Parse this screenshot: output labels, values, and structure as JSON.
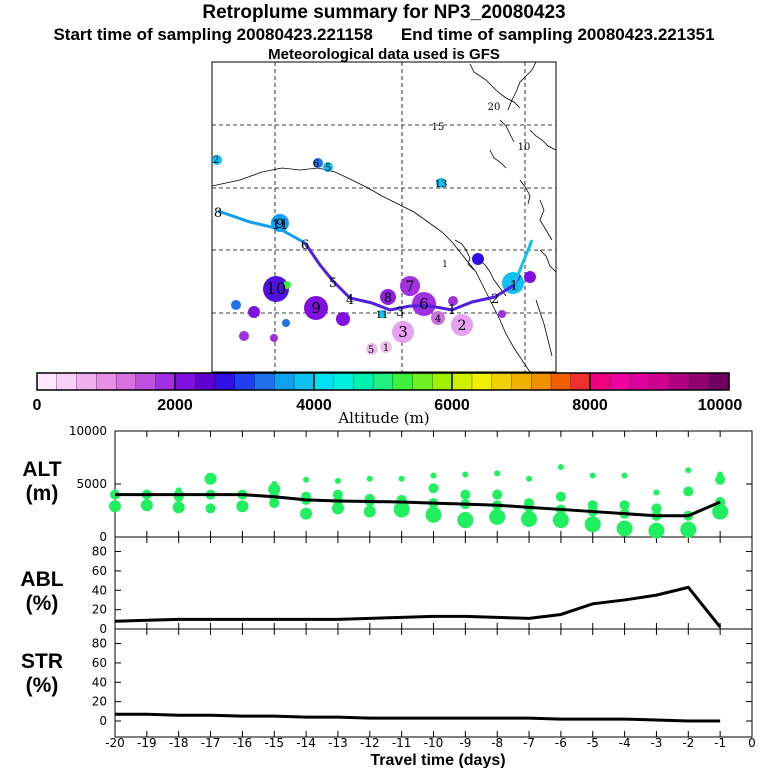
{
  "header": {
    "title": "Retroplume summary for NP3_20080423",
    "start_label": "Start time of sampling 20080423.221158",
    "end_label": "End time of sampling 20080423.221351",
    "met_label": "Meteorological data used is GFS"
  },
  "colorbar": {
    "ticks": [
      "0",
      "2000",
      "4000",
      "6000",
      "8000",
      "10000"
    ],
    "label": "Altitude (m)",
    "colors": [
      "#ffe8ff",
      "#f8d0f8",
      "#f0b0f0",
      "#e890e8",
      "#d870e0",
      "#c050e0",
      "#a030e0",
      "#8010e0",
      "#6000d0",
      "#3010e0",
      "#2040f0",
      "#2070f0",
      "#10a0f0",
      "#10c0f0",
      "#00e0f0",
      "#00f0e0",
      "#00f0b0",
      "#20f080",
      "#40f040",
      "#70f020",
      "#a0f000",
      "#d0f000",
      "#f0f000",
      "#f0d000",
      "#f0b000",
      "#f09000",
      "#f06000",
      "#f03030",
      "#f00080",
      "#f000a0",
      "#e000a0",
      "#d00090",
      "#b00080",
      "#900070",
      "#700060"
    ]
  },
  "map": {
    "trajectory_labels": [
      "8",
      "11",
      "6",
      "5",
      "4",
      "3",
      "1",
      "2",
      "1"
    ],
    "cluster_labels": [
      {
        "t": "10",
        "c": "#5010e0"
      },
      {
        "t": "9",
        "c": "#8010e0"
      },
      {
        "t": "8",
        "c": "#9020e0"
      },
      {
        "t": "7",
        "c": "#a030e0"
      },
      {
        "t": "6",
        "c": "#a030e0"
      },
      {
        "t": "3",
        "c": "#e8a0f0"
      },
      {
        "t": "2",
        "c": "#d070e0"
      },
      {
        "t": "4",
        "c": "#f0c0f0"
      },
      {
        "t": "5",
        "c": "#f0c0f0"
      },
      {
        "t": "1",
        "c": "#10c0f0"
      },
      {
        "t": "11",
        "c": "#10c0f0"
      },
      {
        "t": "9",
        "c": "#2070f0"
      },
      {
        "t": "6",
        "c": "#2070f0"
      },
      {
        "t": "5",
        "c": "#10c0f0"
      },
      {
        "t": "13",
        "c": "#40f040"
      },
      {
        "t": "15",
        "c": "#40f040"
      },
      {
        "t": "20",
        "c": "#70f020"
      },
      {
        "t": "10",
        "c": "#10c0f0"
      },
      {
        "t": "2",
        "c": "#f0d000"
      },
      {
        "t": "1",
        "c": "#f0f000"
      }
    ]
  },
  "panels": {
    "alt_label": [
      "ALT",
      "(m)"
    ],
    "abl_label": [
      "ABL",
      "(%)"
    ],
    "str_label": [
      "STR",
      "(%)"
    ],
    "alt_ticks": [
      "10000",
      "5000",
      "0"
    ],
    "pct_ticks": [
      "80",
      "60",
      "40",
      "20",
      "0"
    ],
    "x_ticks": [
      "-20",
      "-19",
      "-18",
      "-17",
      "-16",
      "-15",
      "-14",
      "-13",
      "-12",
      "-11",
      "-10",
      "-9",
      "-8",
      "-7",
      "-6",
      "-5",
      "-4",
      "-3",
      "-2",
      "-1",
      "0"
    ],
    "x_label": "Travel time (days)"
  },
  "chart_data": {
    "type": "line",
    "x": [
      -20,
      -19,
      -18,
      -17,
      -16,
      -15,
      -14,
      -13,
      -12,
      -11,
      -10,
      -9,
      -8,
      -7,
      -6,
      -5,
      -4,
      -3,
      -2,
      -1
    ],
    "xlabel": "Travel time (days)",
    "xlim": [
      -20,
      0
    ],
    "series": [
      {
        "name": "ALT (m)",
        "ylim": [
          0,
          10000
        ],
        "values": [
          4000,
          4000,
          4000,
          4000,
          4000,
          3800,
          3500,
          3400,
          3350,
          3300,
          3200,
          3100,
          3000,
          2800,
          2600,
          2400,
          2200,
          2000,
          2000,
          3300
        ]
      },
      {
        "name": "ABL (%)",
        "ylim": [
          0,
          95
        ],
        "values": [
          8,
          9,
          10,
          10,
          10,
          10,
          10,
          10,
          11,
          12,
          13,
          13,
          12,
          11,
          15,
          26,
          30,
          35,
          43,
          2
        ]
      },
      {
        "name": "STR (%)",
        "ylim": [
          0,
          95
        ],
        "values": [
          7,
          7,
          6,
          6,
          5,
          5,
          4,
          4,
          3,
          3,
          3,
          3,
          3,
          3,
          2,
          2,
          2,
          1,
          0,
          0
        ]
      }
    ],
    "alt_clusters": [
      {
        "x": -20,
        "y": [
          4000,
          3000,
          2900
        ]
      },
      {
        "x": -19,
        "y": [
          4200,
          3000
        ]
      },
      {
        "x": -18,
        "y": [
          4400,
          3800,
          2800
        ]
      },
      {
        "x": -17,
        "y": [
          4100,
          2700,
          5500
        ]
      },
      {
        "x": -16,
        "y": [
          4000,
          2900
        ]
      },
      {
        "x": -15,
        "y": [
          5000,
          3200,
          4500
        ]
      },
      {
        "x": -14,
        "y": [
          5400,
          3800,
          2200
        ]
      },
      {
        "x": -13,
        "y": [
          5300,
          4000,
          2700
        ]
      },
      {
        "x": -12,
        "y": [
          5500,
          3600,
          2400
        ]
      },
      {
        "x": -11,
        "y": [
          5500,
          3500,
          2600
        ]
      },
      {
        "x": -10,
        "y": [
          5800,
          4600,
          2100
        ]
      },
      {
        "x": -9,
        "y": [
          5900,
          4000,
          1600
        ]
      },
      {
        "x": -8,
        "y": [
          6000,
          4000,
          1900
        ]
      },
      {
        "x": -7,
        "y": [
          5500,
          3200,
          1700
        ]
      },
      {
        "x": -6,
        "y": [
          6600,
          3800,
          1600
        ]
      },
      {
        "x": -5,
        "y": [
          5800,
          3000,
          1200
        ]
      },
      {
        "x": -4,
        "y": [
          5800,
          3000,
          800
        ]
      },
      {
        "x": -3,
        "y": [
          4200,
          2700,
          600
        ]
      },
      {
        "x": -2,
        "y": [
          6300,
          4300,
          700
        ]
      },
      {
        "x": -1,
        "y": [
          5900,
          5400,
          3300,
          2400
        ]
      }
    ]
  }
}
